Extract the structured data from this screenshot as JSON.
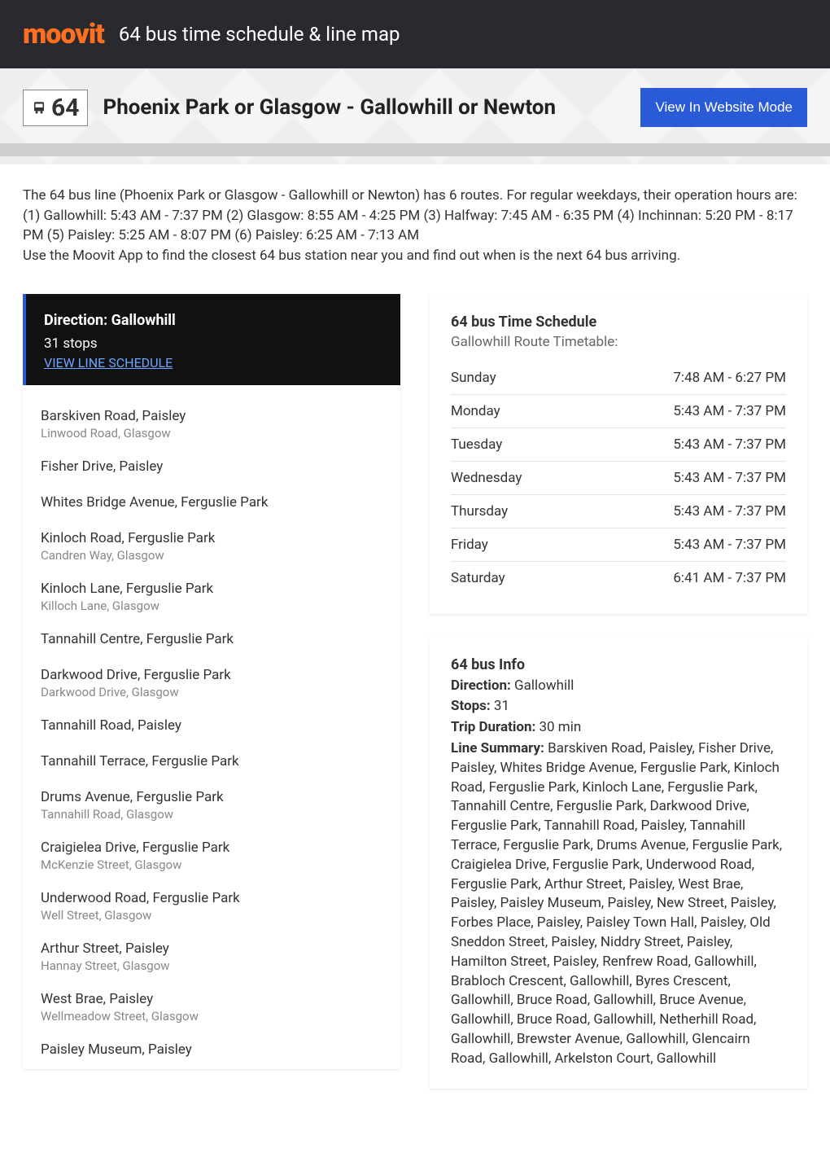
{
  "header": {
    "logo_text": "moovit",
    "title": "64 bus time schedule & line map"
  },
  "title_row": {
    "route_number": "64",
    "route_name": "Phoenix Park or Glasgow - Gallowhill or Newton",
    "website_button": "View In Website Mode"
  },
  "intro": {
    "line1": "The 64 bus line (Phoenix Park or Glasgow - Gallowhill or Newton) has 6 routes. For regular weekdays, their operation hours are:",
    "line2": "(1) Gallowhill: 5:43 AM - 7:37 PM (2) Glasgow: 8:55 AM - 4:25 PM (3) Halfway: 7:45 AM - 6:35 PM (4) Inchinnan: 5:20 PM - 8:17 PM (5) Paisley: 5:25 AM - 8:07 PM (6) Paisley: 6:25 AM - 7:13 AM",
    "line3": "Use the Moovit App to find the closest 64 bus station near you and find out when is the next 64 bus arriving."
  },
  "direction_box": {
    "title": "Direction: Gallowhill",
    "stops_count": "31 stops",
    "link": "VIEW LINE SCHEDULE"
  },
  "stops": [
    {
      "name": "Barskiven Road, Paisley",
      "sub": "Linwood Road, Glasgow"
    },
    {
      "name": "Fisher Drive, Paisley",
      "sub": ""
    },
    {
      "name": "Whites Bridge Avenue, Ferguslie Park",
      "sub": ""
    },
    {
      "name": "Kinloch Road, Ferguslie Park",
      "sub": "Candren Way, Glasgow"
    },
    {
      "name": "Kinloch Lane, Ferguslie Park",
      "sub": "Killoch Lane, Glasgow"
    },
    {
      "name": "Tannahill Centre, Ferguslie Park",
      "sub": ""
    },
    {
      "name": "Darkwood Drive, Ferguslie Park",
      "sub": "Darkwood Drive, Glasgow"
    },
    {
      "name": "Tannahill Road, Paisley",
      "sub": ""
    },
    {
      "name": "Tannahill Terrace, Ferguslie Park",
      "sub": ""
    },
    {
      "name": "Drums Avenue, Ferguslie Park",
      "sub": "Tannahill Road, Glasgow"
    },
    {
      "name": "Craigielea Drive, Ferguslie Park",
      "sub": "McKenzie Street, Glasgow"
    },
    {
      "name": "Underwood Road, Ferguslie Park",
      "sub": "Well Street, Glasgow"
    },
    {
      "name": "Arthur Street, Paisley",
      "sub": "Hannay Street, Glasgow"
    },
    {
      "name": "West Brae, Paisley",
      "sub": "Wellmeadow Street, Glasgow"
    },
    {
      "name": "Paisley Museum, Paisley",
      "sub": ""
    }
  ],
  "timetable": {
    "title": "64 bus Time Schedule",
    "subtitle": "Gallowhill Route Timetable:",
    "rows": [
      {
        "day": "Sunday",
        "hours": "7:48 AM - 6:27 PM"
      },
      {
        "day": "Monday",
        "hours": "5:43 AM - 7:37 PM"
      },
      {
        "day": "Tuesday",
        "hours": "5:43 AM - 7:37 PM"
      },
      {
        "day": "Wednesday",
        "hours": "5:43 AM - 7:37 PM"
      },
      {
        "day": "Thursday",
        "hours": "5:43 AM - 7:37 PM"
      },
      {
        "day": "Friday",
        "hours": "5:43 AM - 7:37 PM"
      },
      {
        "day": "Saturday",
        "hours": "6:41 AM - 7:37 PM"
      }
    ]
  },
  "info": {
    "title": "64 bus Info",
    "direction_label": "Direction:",
    "direction_value": " Gallowhill",
    "stops_label": "Stops:",
    "stops_value": " 31",
    "duration_label": "Trip Duration:",
    "duration_value": " 30 min",
    "summary_label": "Line Summary:",
    "summary_value": " Barskiven Road, Paisley, Fisher Drive, Paisley, Whites Bridge Avenue, Ferguslie Park, Kinloch Road, Ferguslie Park, Kinloch Lane, Ferguslie Park, Tannahill Centre, Ferguslie Park, Darkwood Drive, Ferguslie Park, Tannahill Road, Paisley, Tannahill Terrace, Ferguslie Park, Drums Avenue, Ferguslie Park, Craigielea Drive, Ferguslie Park, Underwood Road, Ferguslie Park, Arthur Street, Paisley, West Brae, Paisley, Paisley Museum, Paisley, New Street, Paisley, Forbes Place, Paisley, Paisley Town Hall, Paisley, Old Sneddon Street, Paisley, Niddry Street, Paisley, Hamilton Street, Paisley, Renfrew Road, Gallowhill, Brabloch Crescent, Gallowhill, Byres Crescent, Gallowhill, Bruce Road, Gallowhill, Bruce Avenue, Gallowhill, Bruce Road, Gallowhill, Netherhill Road, Gallowhill, Brewster Avenue, Gallowhill, Glencairn Road, Gallowhill, Arkelston Court, Gallowhill"
  },
  "colors": {
    "header_bg": "#292a30",
    "logo": "#ff6f20",
    "accent": "#2a5bd7",
    "link": "#6aa5ff"
  }
}
